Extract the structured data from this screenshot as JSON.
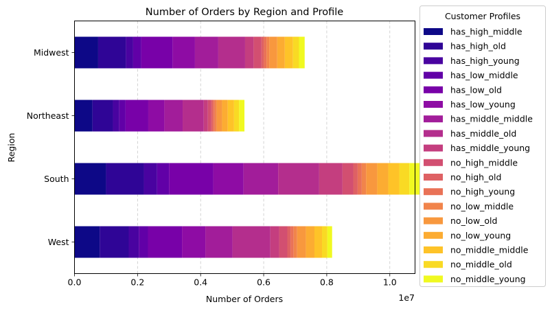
{
  "chart_data": {
    "type": "bar",
    "orientation": "horizontal",
    "stacked": true,
    "title": "Number of Orders by Region and Profile",
    "xlabel": "Number of Orders",
    "ylabel": "Region",
    "x_scale_label": "1e7",
    "xlim": [
      0,
      10800000
    ],
    "xticks": [
      0,
      2000000,
      4000000,
      6000000,
      8000000,
      10000000
    ],
    "xtick_labels": [
      "0.0",
      "0.2",
      "0.4",
      "0.6",
      "0.8",
      "1.0"
    ],
    "grid": "x-dashed",
    "legend": {
      "title": "Customer Profiles",
      "placement": "outside-right"
    },
    "categories": [
      "West",
      "South",
      "Northeast",
      "Midwest"
    ],
    "colormap": "plasma",
    "series": [
      {
        "name": "has_high_middle",
        "color": "#0d0887",
        "values": [
          800000,
          1000000,
          570000,
          750000
        ]
      },
      {
        "name": "has_high_old",
        "color": "#2f0596",
        "values": [
          920000,
          1200000,
          650000,
          880000
        ]
      },
      {
        "name": "has_high_young",
        "color": "#4903a0",
        "values": [
          320000,
          420000,
          200000,
          230000
        ]
      },
      {
        "name": "has_low_middle",
        "color": "#6100a7",
        "values": [
          290000,
          380000,
          200000,
          260000
        ]
      },
      {
        "name": "has_low_old",
        "color": "#7801a8",
        "values": [
          1080000,
          1400000,
          720000,
          990000
        ]
      },
      {
        "name": "has_low_young",
        "color": "#8e0ca4",
        "values": [
          740000,
          960000,
          510000,
          710000
        ]
      },
      {
        "name": "has_middle_middle",
        "color": "#a21d9a",
        "values": [
          860000,
          1100000,
          580000,
          740000
        ]
      },
      {
        "name": "has_middle_old",
        "color": "#b42e8d",
        "values": [
          1200000,
          1300000,
          670000,
          850000
        ]
      },
      {
        "name": "has_middle_young",
        "color": "#c43e7f",
        "values": [
          280000,
          740000,
          130000,
          270000
        ]
      },
      {
        "name": "no_high_middle",
        "color": "#d24f71",
        "values": [
          260000,
          340000,
          110000,
          250000
        ]
      },
      {
        "name": "no_high_old",
        "color": "#de6164",
        "values": [
          100000,
          140000,
          50000,
          70000
        ]
      },
      {
        "name": "no_high_young",
        "color": "#e97257",
        "values": [
          100000,
          130000,
          60000,
          90000
        ]
      },
      {
        "name": "no_low_middle",
        "color": "#f1844b",
        "values": [
          110000,
          140000,
          60000,
          90000
        ]
      },
      {
        "name": "no_low_old",
        "color": "#f8983e",
        "values": [
          280000,
          350000,
          170000,
          250000
        ]
      },
      {
        "name": "no_low_young",
        "color": "#fcac32",
        "values": [
          270000,
          350000,
          180000,
          240000
        ]
      },
      {
        "name": "no_middle_middle",
        "color": "#fec328",
        "values": [
          240000,
          350000,
          200000,
          260000
        ]
      },
      {
        "name": "no_middle_old",
        "color": "#f9da24",
        "values": [
          170000,
          320000,
          160000,
          190000
        ]
      },
      {
        "name": "no_middle_young",
        "color": "#f0f921",
        "values": [
          150000,
          450000,
          170000,
          180000
        ]
      }
    ]
  }
}
